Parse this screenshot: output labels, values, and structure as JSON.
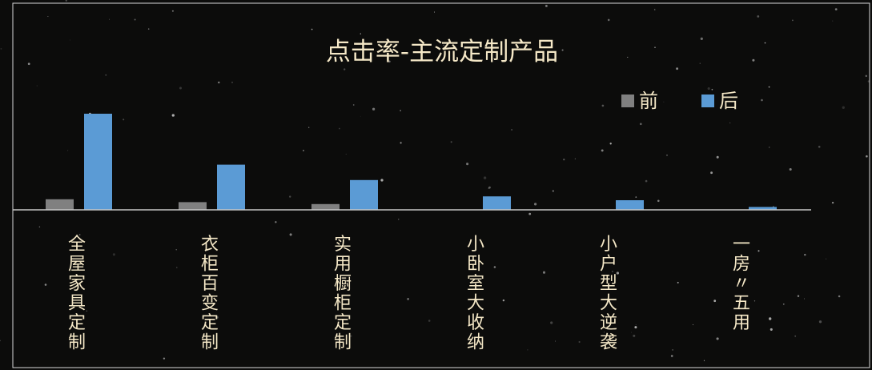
{
  "chart_data": {
    "type": "bar",
    "title": "点击率-主流定制产品",
    "categories": [
      "全屋家具定制",
      "衣柜百变定制",
      "实用橱柜定制",
      "小卧室大收纳",
      "小户型大逆袭",
      "一房〃五用"
    ],
    "series": [
      {
        "name": "前",
        "color": "#808080",
        "values": [
          0.11,
          0.08,
          0.06,
          0,
          0,
          0
        ]
      },
      {
        "name": "后",
        "color": "#5b9bd5",
        "values": [
          1.0,
          0.47,
          0.31,
          0.14,
          0.1,
          0.03
        ]
      }
    ],
    "ylim": [
      0,
      1.0
    ],
    "legend_position": "top-right",
    "grid": false,
    "y_axis_visible": false,
    "background_color": "#0c0c0b",
    "text_color": "#f5e8c7",
    "axis_color": "#c8c8c8"
  }
}
